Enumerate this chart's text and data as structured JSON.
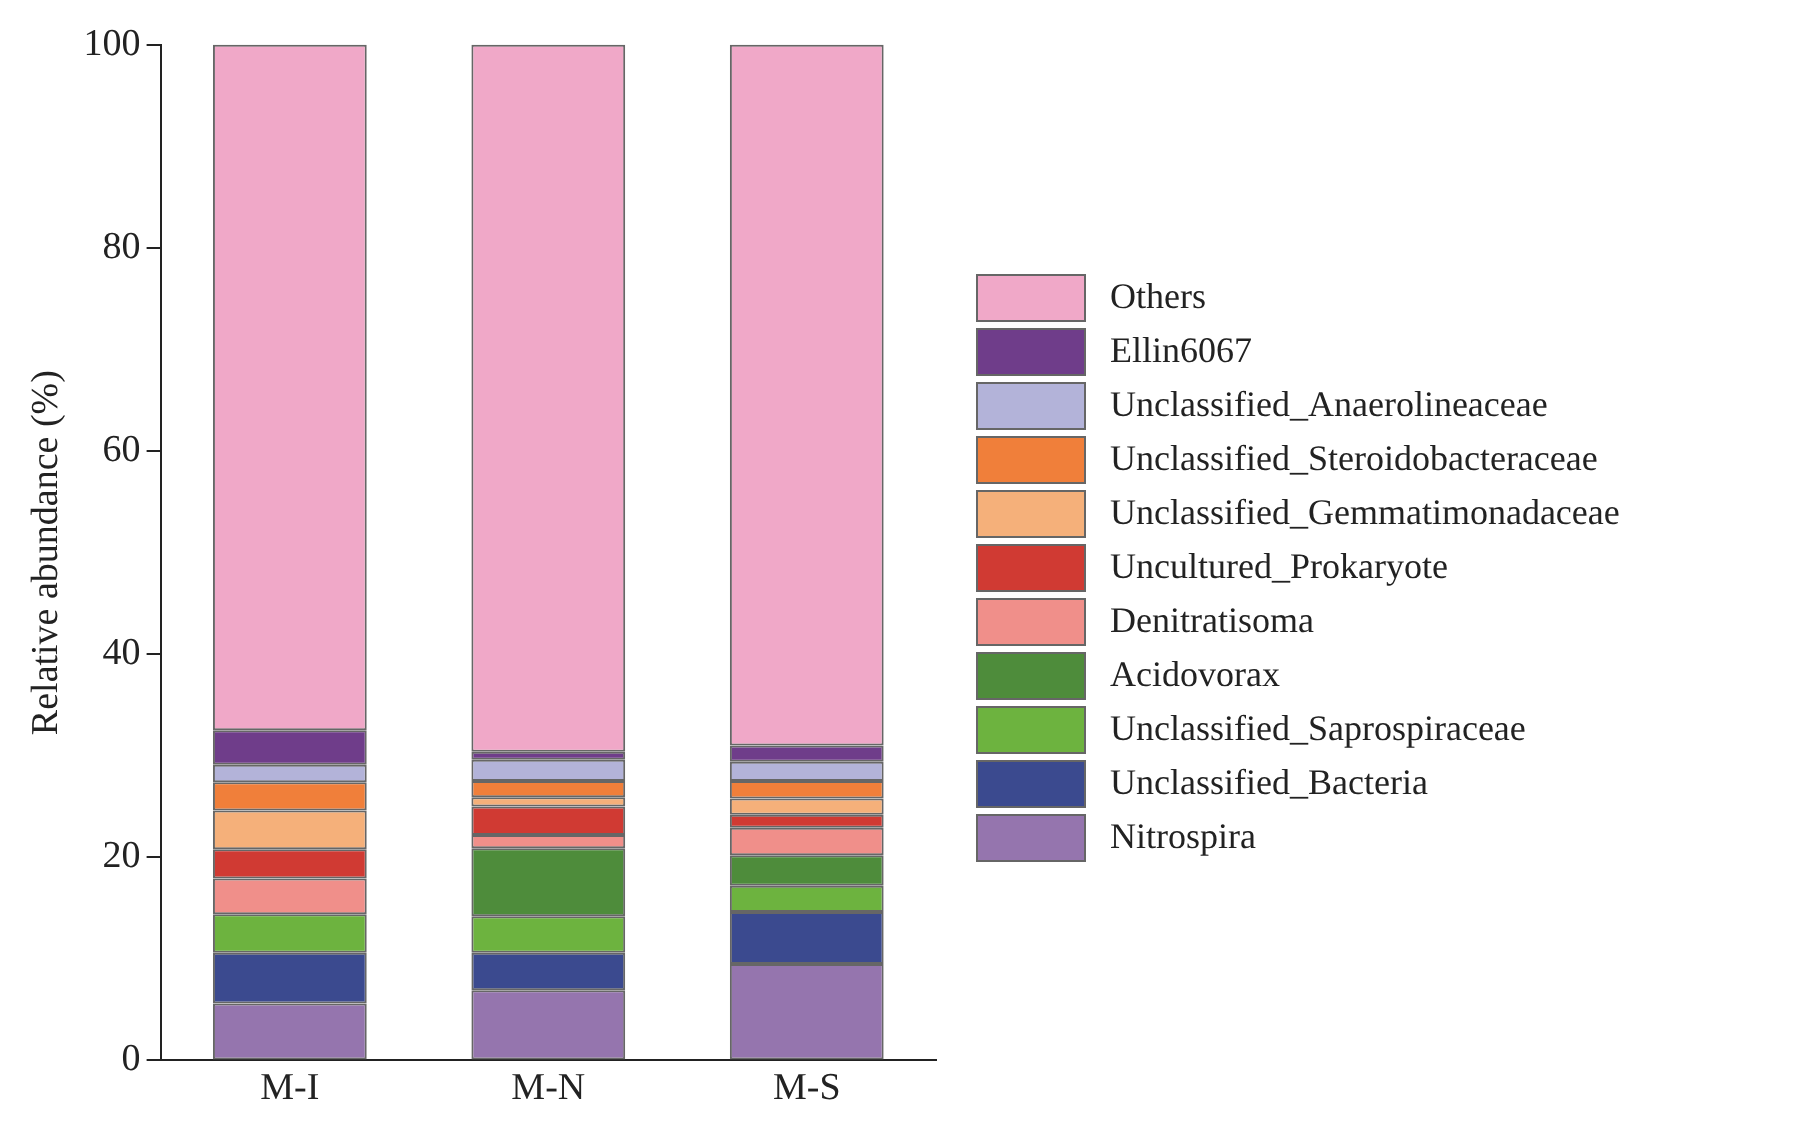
{
  "chart_data": {
    "type": "bar",
    "stacked": true,
    "ylabel": "Relative abundance (%)",
    "categories": [
      "M-I",
      "M-N",
      "M-S"
    ],
    "ylim": [
      0,
      100
    ],
    "yticks": [
      0,
      20,
      40,
      60,
      80,
      100
    ],
    "grid": false,
    "legend": "right",
    "series": [
      {
        "name": "Nitrospira",
        "color": "#9575ae",
        "values": [
          5.6,
          6.9,
          9.5
        ]
      },
      {
        "name": "Unclassified_Bacteria",
        "color": "#3b4a8f",
        "values": [
          5.0,
          3.7,
          5.1
        ]
      },
      {
        "name": "Unclassified_Saprospiraceae",
        "color": "#6db33f",
        "values": [
          3.8,
          3.6,
          2.6
        ]
      },
      {
        "name": "Acidovorax",
        "color": "#4e8c3b",
        "values": [
          0,
          6.7,
          3.0
        ]
      },
      {
        "name": "Denitratisoma",
        "color": "#f08f8a",
        "values": [
          3.5,
          1.3,
          2.7
        ]
      },
      {
        "name": "Uncultured_Prokaryote",
        "color": "#d03a33",
        "values": [
          2.9,
          2.8,
          1.3
        ]
      },
      {
        "name": "Unclassified_Gemmatimonadaceae",
        "color": "#f5b07a",
        "values": [
          3.8,
          0.9,
          1.6
        ]
      },
      {
        "name": "Unclassified_Steroidobacteraceae",
        "color": "#f07f3a",
        "values": [
          2.8,
          1.6,
          1.7
        ]
      },
      {
        "name": "Unclassified_Anaerolineaceae",
        "color": "#b3b3d9",
        "values": [
          1.7,
          2.1,
          1.9
        ]
      },
      {
        "name": "Ellin6067",
        "color": "#6f3d8a",
        "values": [
          3.4,
          0.8,
          1.6
        ]
      },
      {
        "name": "Others",
        "color": "#f0a8c8",
        "values": [
          67.5,
          69.6,
          69.0
        ]
      }
    ]
  }
}
